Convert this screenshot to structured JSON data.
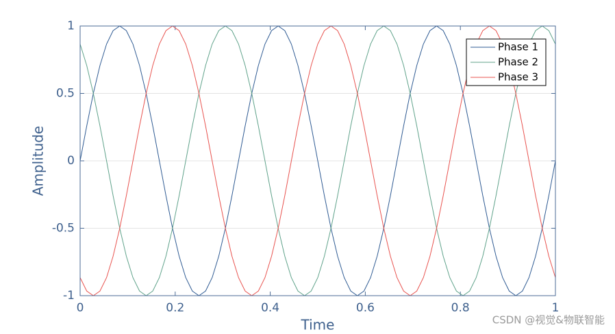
{
  "chart_data": {
    "type": "line",
    "xlabel": "Time",
    "ylabel": "Amplitude",
    "x": [
      0,
      0.0139,
      0.0278,
      0.0417,
      0.0556,
      0.0694,
      0.0833,
      0.0972,
      0.1111,
      0.125,
      0.1389,
      0.1528,
      0.1667,
      0.1806,
      0.1944,
      0.2083,
      0.2222,
      0.2361,
      0.25,
      0.2639,
      0.2778,
      0.2917,
      0.3056,
      0.3194,
      0.3333,
      0.3472,
      0.3611,
      0.375,
      0.3889,
      0.4028,
      0.4167,
      0.4306,
      0.4444,
      0.4583,
      0.4722,
      0.4861,
      0.5,
      0.5139,
      0.5278,
      0.5417,
      0.5556,
      0.5694,
      0.5833,
      0.5972,
      0.6111,
      0.625,
      0.6389,
      0.6528,
      0.6667,
      0.6806,
      0.6944,
      0.7083,
      0.7222,
      0.7361,
      0.75,
      0.7639,
      0.7778,
      0.7917,
      0.8056,
      0.8194,
      0.8333,
      0.8472,
      0.8611,
      0.875,
      0.8889,
      0.9028,
      0.9167,
      0.9306,
      0.9444,
      0.9583,
      0.9722,
      0.9861,
      1
    ],
    "series": [
      {
        "name": "Phase 1",
        "color": "#2f5b93",
        "values": [
          0,
          0.2588,
          0.5,
          0.7071,
          0.866,
          0.9659,
          1,
          0.9659,
          0.866,
          0.7071,
          0.5,
          0.2588,
          0,
          -0.2588,
          -0.5,
          -0.7071,
          -0.866,
          -0.9659,
          -1,
          -0.9659,
          -0.866,
          -0.7071,
          -0.5,
          -0.2588,
          0,
          0.2588,
          0.5,
          0.7071,
          0.866,
          0.9659,
          1,
          0.9659,
          0.866,
          0.7071,
          0.5,
          0.2588,
          0,
          -0.2588,
          -0.5,
          -0.7071,
          -0.866,
          -0.9659,
          -1,
          -0.9659,
          -0.866,
          -0.7071,
          -0.5,
          -0.2588,
          0,
          0.2588,
          0.5,
          0.7071,
          0.866,
          0.9659,
          1,
          0.9659,
          0.866,
          0.7071,
          0.5,
          0.2588,
          0,
          -0.2588,
          -0.5,
          -0.7071,
          -0.866,
          -0.9659,
          -1,
          -0.9659,
          -0.866,
          -0.7071,
          -0.5,
          -0.2588,
          0
        ]
      },
      {
        "name": "Phase 2",
        "color": "#5fa28a",
        "values": [
          0.866,
          0.7071,
          0.5,
          0.2588,
          0,
          -0.2588,
          -0.5,
          -0.7071,
          -0.866,
          -0.9659,
          -1,
          -0.9659,
          -0.866,
          -0.7071,
          -0.5,
          -0.2588,
          0,
          0.2588,
          0.5,
          0.7071,
          0.866,
          0.9659,
          1,
          0.9659,
          0.866,
          0.7071,
          0.5,
          0.2588,
          0,
          -0.2588,
          -0.5,
          -0.7071,
          -0.866,
          -0.9659,
          -1,
          -0.9659,
          -0.866,
          -0.7071,
          -0.5,
          -0.2588,
          0,
          0.2588,
          0.5,
          0.7071,
          0.866,
          0.9659,
          1,
          0.9659,
          0.866,
          0.7071,
          0.5,
          0.2588,
          0,
          -0.2588,
          -0.5,
          -0.7071,
          -0.866,
          -0.9659,
          -1,
          -0.9659,
          -0.866,
          -0.7071,
          -0.5,
          -0.2588,
          0,
          0.2588,
          0.5,
          0.7071,
          0.866,
          0.9659,
          1,
          0.9659,
          0.866
        ]
      },
      {
        "name": "Phase 3",
        "color": "#e8534f",
        "values": [
          -0.866,
          -0.9659,
          -1,
          -0.9659,
          -0.866,
          -0.7071,
          -0.5,
          -0.2588,
          0,
          0.2588,
          0.5,
          0.7071,
          0.866,
          0.9659,
          1,
          0.9659,
          0.866,
          0.7071,
          0.5,
          0.2588,
          0,
          -0.2588,
          -0.5,
          -0.7071,
          -0.866,
          -0.9659,
          -1,
          -0.9659,
          -0.866,
          -0.7071,
          -0.5,
          -0.2588,
          0,
          0.2588,
          0.5,
          0.7071,
          0.866,
          0.9659,
          1,
          0.9659,
          0.866,
          0.7071,
          0.5,
          0.2588,
          0,
          -0.2588,
          -0.5,
          -0.7071,
          -0.866,
          -0.9659,
          -1,
          -0.9659,
          -0.866,
          -0.7071,
          -0.5,
          -0.2588,
          0,
          0.2588,
          0.5,
          0.7071,
          0.866,
          0.9659,
          1,
          0.9659,
          0.866,
          0.7071,
          0.5,
          0.2588,
          0,
          -0.2588,
          -0.5,
          -0.7071,
          -0.866
        ]
      }
    ],
    "xlim": [
      0,
      1
    ],
    "xticks": [
      0,
      0.2,
      0.4,
      0.6,
      0.8,
      1
    ],
    "ylim": [
      -1,
      1
    ],
    "yticks": [
      -1,
      -0.5,
      0,
      0.5,
      1
    ],
    "grid": true,
    "legend": "upper right",
    "watermark": "CSDN @视觉&物联智能"
  }
}
